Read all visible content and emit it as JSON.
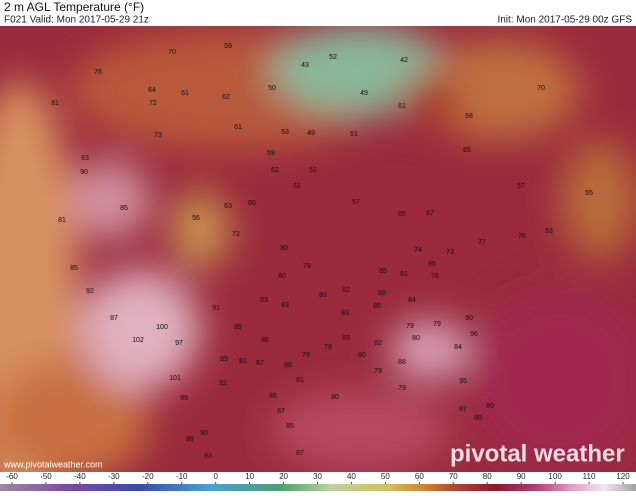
{
  "header": {
    "title": "2 m AGL Temperature (°F)",
    "valid": "F021 Valid: Mon 2017-05-29 21z",
    "init": "Init: Mon 2017-05-29 00z GFS"
  },
  "map": {
    "labels": [
      70,
      59,
      76,
      64,
      61,
      62,
      72,
      61,
      52,
      43,
      42,
      50,
      49,
      53,
      49,
      51,
      61,
      70,
      68,
      65,
      81,
      73,
      83,
      90,
      59,
      62,
      61,
      51,
      57,
      65,
      67,
      57,
      55,
      53,
      81,
      85,
      56,
      63,
      65,
      72,
      74,
      73,
      77,
      76,
      85,
      92,
      87,
      100,
      102,
      97,
      80,
      79,
      80,
      83,
      83,
      82,
      83,
      85,
      81,
      85,
      76,
      88,
      84,
      85,
      91,
      85,
      83,
      86,
      79,
      79,
      83,
      82,
      80,
      79,
      79,
      90,
      96,
      84,
      88,
      79,
      80,
      101,
      99,
      92,
      89,
      81,
      87,
      88,
      81,
      86,
      87,
      85,
      79,
      80,
      95,
      87,
      80,
      80,
      86,
      83,
      90,
      87
    ]
  },
  "colorbar": {
    "ticks": [
      -60,
      -50,
      -40,
      -30,
      -20,
      -10,
      0,
      10,
      20,
      30,
      40,
      50,
      60,
      70,
      80,
      90,
      100,
      110,
      120
    ]
  },
  "footer": {
    "website": "www.pivotalweather.com",
    "watermark": "pivotal weather"
  }
}
